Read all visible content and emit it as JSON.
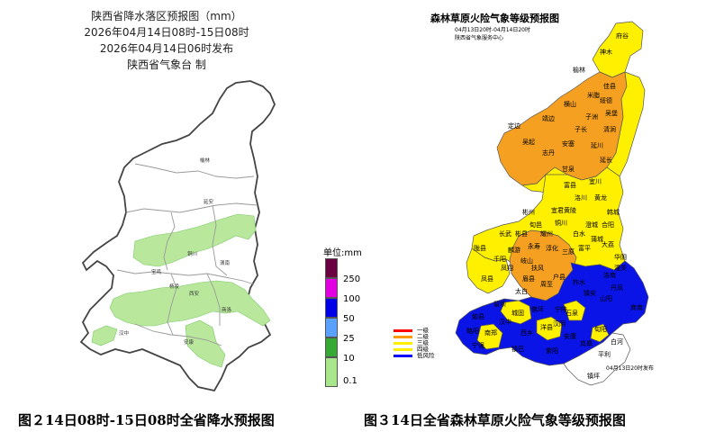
{
  "precip_map": {
    "title": "陕西省降水落区预报图（mm）",
    "valid_period": "2026年04月14日08时-15日08时",
    "issued": "2026年04月14日06时发布",
    "issuer": "陕西省气象台 制",
    "legend_title": "单位:mm",
    "legend": [
      {
        "label": "250",
        "color": "#6b0040"
      },
      {
        "label": "100",
        "color": "#e000e0"
      },
      {
        "label": "50",
        "color": "#0000e6"
      },
      {
        "label": "25",
        "color": "#5aa0ff"
      },
      {
        "label": "10",
        "color": "#36a836"
      },
      {
        "label": "0.1",
        "color": "#a8e68c"
      }
    ],
    "place_names": [
      "榆林",
      "延安",
      "铜川",
      "渭南",
      "西安",
      "宝鸡",
      "商洛",
      "汉中",
      "安康",
      "杨凌"
    ]
  },
  "fire_map": {
    "title": "森林草原火险气象等级预报图",
    "valid_period": "04月13日20时-04月14日20时",
    "issuer": "陕西省气象服务中心",
    "issued": "04月13日20时发布",
    "legend": [
      {
        "label": "一级",
        "color": "#ff0000"
      },
      {
        "label": "二级",
        "color": "#ff9900"
      },
      {
        "label": "三级",
        "color": "#ffee00"
      },
      {
        "label": "四级",
        "color": "#ffee00"
      },
      {
        "label": "低风险",
        "color": "#0000ff"
      }
    ],
    "colors": {
      "orange": "#f5a020",
      "yellow": "#fff000",
      "blue": "#0a14e6",
      "white": "#ffffff"
    },
    "counties": [
      "府谷",
      "神木",
      "榆林",
      "佳县",
      "米脂",
      "靖边",
      "横山",
      "子洲",
      "吴堡",
      "绥德",
      "定边",
      "清涧",
      "子长",
      "吴起",
      "志丹",
      "安塞",
      "延川",
      "延长",
      "甘泉",
      "富县",
      "宜川",
      "黄龙",
      "洛川",
      "黄陵",
      "韩城",
      "合阳",
      "澄城",
      "白水",
      "蒲城",
      "大荔",
      "华阴",
      "潼关",
      "铜川",
      "耀州",
      "宜君",
      "旬邑",
      "彬县",
      "长武",
      "淳化",
      "永寿",
      "麟游",
      "千阳",
      "陇县",
      "凤翔",
      "岐山",
      "扶风",
      "眉县",
      "太白",
      "周至",
      "户县",
      "凤县",
      "留坝",
      "佛坪",
      "宁陕",
      "镇安",
      "柞水",
      "山阳",
      "商南",
      "丹凤",
      "洛南",
      "勉县",
      "略阳",
      "宁强",
      "南郑",
      "汉中",
      "城固",
      "洋县",
      "西乡",
      "镇巴",
      "石泉",
      "汉阴",
      "紫阳",
      "岚皋",
      "平利",
      "旬阳",
      "白河",
      "镇坪",
      "安康",
      "彬州",
      "富平",
      "三原"
    ]
  },
  "captions": {
    "left": "图２14日08时-15日08时全省降水预报图",
    "right": "图３14日全省森林草原火险气象等级预报图"
  }
}
